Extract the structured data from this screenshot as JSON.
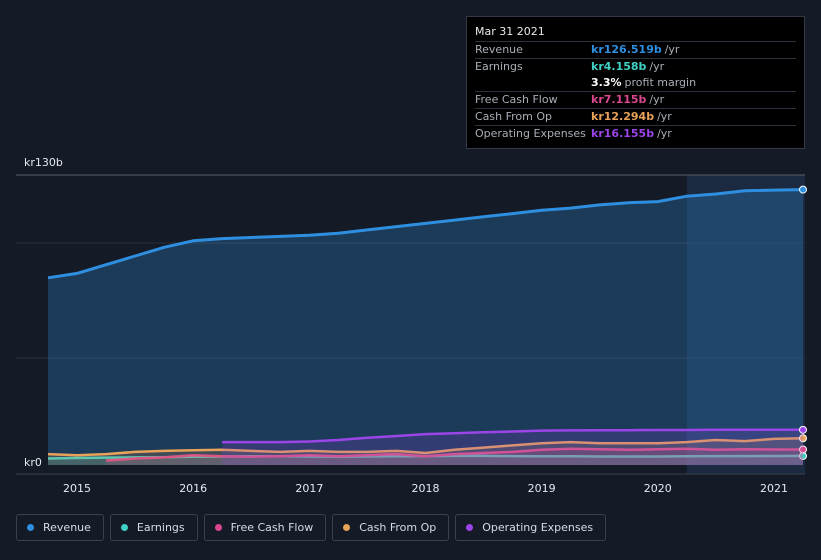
{
  "chart_data": {
    "type": "area",
    "y_axis": {
      "top_label": "kr130b",
      "bottom_label": "kr0",
      "ylim": [
        0,
        130
      ]
    },
    "x_ticks": [
      "2015",
      "2016",
      "2017",
      "2018",
      "2019",
      "2020",
      "2021"
    ],
    "xlim": [
      2014.7,
      2021.25
    ],
    "units": "kr billions",
    "series": [
      {
        "name": "Revenue",
        "color": "#2e8fe0",
        "points": [
          [
            2014.75,
            86
          ],
          [
            2015.0,
            88
          ],
          [
            2015.25,
            92
          ],
          [
            2015.5,
            96
          ],
          [
            2015.75,
            100
          ],
          [
            2016.0,
            103
          ],
          [
            2016.25,
            104
          ],
          [
            2016.5,
            104.5
          ],
          [
            2016.75,
            105
          ],
          [
            2017.0,
            105.5
          ],
          [
            2017.25,
            106.5
          ],
          [
            2017.5,
            108
          ],
          [
            2017.75,
            109.5
          ],
          [
            2018.0,
            111
          ],
          [
            2018.25,
            112.5
          ],
          [
            2018.5,
            114
          ],
          [
            2018.75,
            115.5
          ],
          [
            2019.0,
            117
          ],
          [
            2019.25,
            118
          ],
          [
            2019.5,
            119.5
          ],
          [
            2019.75,
            120.5
          ],
          [
            2020.0,
            121
          ],
          [
            2020.25,
            123.5
          ],
          [
            2020.5,
            124.5
          ],
          [
            2020.75,
            126
          ],
          [
            2021.0,
            126.3
          ],
          [
            2021.25,
            126.519
          ]
        ]
      },
      {
        "name": "Earnings",
        "color": "#3fd1c4",
        "points": [
          [
            2014.75,
            3
          ],
          [
            2015.0,
            3.2
          ],
          [
            2015.25,
            3.4
          ],
          [
            2015.5,
            3.5
          ],
          [
            2015.75,
            3.6
          ],
          [
            2016.0,
            3.8
          ],
          [
            2016.25,
            3.9
          ],
          [
            2016.5,
            4
          ],
          [
            2016.75,
            4
          ],
          [
            2017.0,
            3.9
          ],
          [
            2017.25,
            3.8
          ],
          [
            2017.5,
            3.9
          ],
          [
            2017.75,
            4
          ],
          [
            2018.0,
            4.1
          ],
          [
            2018.25,
            4.2
          ],
          [
            2018.5,
            4.2
          ],
          [
            2018.75,
            4.1
          ],
          [
            2019.0,
            4
          ],
          [
            2019.25,
            4
          ],
          [
            2019.5,
            3.9
          ],
          [
            2019.75,
            3.9
          ],
          [
            2020.0,
            3.9
          ],
          [
            2020.25,
            4
          ],
          [
            2020.5,
            4.1
          ],
          [
            2020.75,
            4.1
          ],
          [
            2021.0,
            4.15
          ],
          [
            2021.25,
            4.158
          ]
        ]
      },
      {
        "name": "Free Cash Flow",
        "color": "#d9468f",
        "points": [
          [
            2015.25,
            2
          ],
          [
            2015.5,
            3
          ],
          [
            2015.75,
            3.5
          ],
          [
            2016.0,
            4.5
          ],
          [
            2016.25,
            4
          ],
          [
            2016.5,
            3.8
          ],
          [
            2016.75,
            4
          ],
          [
            2017.0,
            4.5
          ],
          [
            2017.25,
            4
          ],
          [
            2017.5,
            4.5
          ],
          [
            2017.75,
            5
          ],
          [
            2018.0,
            4
          ],
          [
            2018.25,
            5
          ],
          [
            2018.5,
            5.5
          ],
          [
            2018.75,
            6
          ],
          [
            2019.0,
            7
          ],
          [
            2019.25,
            7.5
          ],
          [
            2019.5,
            7.2
          ],
          [
            2019.75,
            7
          ],
          [
            2020.0,
            7.2
          ],
          [
            2020.25,
            7.5
          ],
          [
            2020.5,
            7
          ],
          [
            2020.75,
            7.2
          ],
          [
            2021.0,
            7.1
          ],
          [
            2021.25,
            7.115
          ]
        ]
      },
      {
        "name": "Cash From Op",
        "color": "#e8a25a",
        "points": [
          [
            2014.75,
            5
          ],
          [
            2015.0,
            4.5
          ],
          [
            2015.25,
            5
          ],
          [
            2015.5,
            6
          ],
          [
            2015.75,
            6.5
          ],
          [
            2016.0,
            6.8
          ],
          [
            2016.25,
            7
          ],
          [
            2016.5,
            6.5
          ],
          [
            2016.75,
            6
          ],
          [
            2017.0,
            6.5
          ],
          [
            2017.25,
            6
          ],
          [
            2017.5,
            6
          ],
          [
            2017.75,
            6.5
          ],
          [
            2018.0,
            5.5
          ],
          [
            2018.25,
            7
          ],
          [
            2018.5,
            8
          ],
          [
            2018.75,
            9
          ],
          [
            2019.0,
            10
          ],
          [
            2019.25,
            10.5
          ],
          [
            2019.5,
            10
          ],
          [
            2019.75,
            10
          ],
          [
            2020.0,
            10
          ],
          [
            2020.25,
            10.5
          ],
          [
            2020.5,
            11.5
          ],
          [
            2020.75,
            11
          ],
          [
            2021.0,
            12
          ],
          [
            2021.25,
            12.294
          ]
        ]
      },
      {
        "name": "Operating Expenses",
        "color": "#9b45e8",
        "points": [
          [
            2016.25,
            10.5
          ],
          [
            2016.5,
            10.5
          ],
          [
            2016.75,
            10.5
          ],
          [
            2017.0,
            10.8
          ],
          [
            2017.25,
            11.5
          ],
          [
            2017.5,
            12.5
          ],
          [
            2017.75,
            13.3
          ],
          [
            2018.0,
            14.2
          ],
          [
            2018.25,
            14.6
          ],
          [
            2018.5,
            15
          ],
          [
            2018.75,
            15.4
          ],
          [
            2019.0,
            15.8
          ],
          [
            2019.25,
            15.9
          ],
          [
            2019.5,
            16
          ],
          [
            2019.75,
            16
          ],
          [
            2020.0,
            16.1
          ],
          [
            2020.25,
            16.1
          ],
          [
            2020.5,
            16.15
          ],
          [
            2020.75,
            16.15
          ],
          [
            2021.0,
            16.15
          ],
          [
            2021.25,
            16.155
          ]
        ]
      }
    ]
  },
  "tooltip": {
    "date": "Mar 31 2021",
    "rows": [
      {
        "label": "Revenue",
        "value": "kr126.519b",
        "unit": "/yr",
        "color": "#2e8fe0"
      },
      {
        "label": "Earnings",
        "value": "kr4.158b",
        "unit": "/yr",
        "color": "#3fd1c4"
      },
      {
        "label": "",
        "value": "3.3%",
        "unit": "profit margin",
        "color": "#ffffff"
      },
      {
        "label": "Free Cash Flow",
        "value": "kr7.115b",
        "unit": "/yr",
        "color": "#d9468f"
      },
      {
        "label": "Cash From Op",
        "value": "kr12.294b",
        "unit": "/yr",
        "color": "#e8a25a"
      },
      {
        "label": "Operating Expenses",
        "value": "kr16.155b",
        "unit": "/yr",
        "color": "#9b45e8"
      }
    ]
  },
  "legend": [
    {
      "label": "Revenue",
      "color": "#2e8fe0"
    },
    {
      "label": "Earnings",
      "color": "#3fd1c4"
    },
    {
      "label": "Free Cash Flow",
      "color": "#d9468f"
    },
    {
      "label": "Cash From Op",
      "color": "#e8a25a"
    },
    {
      "label": "Operating Expenses",
      "color": "#9b45e8"
    }
  ]
}
